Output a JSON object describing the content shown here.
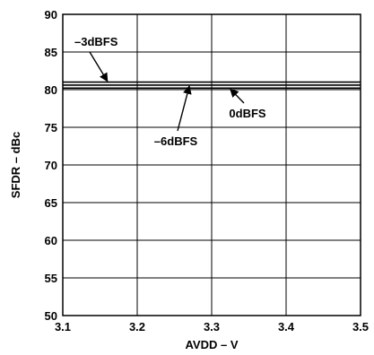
{
  "chart_data": {
    "type": "line",
    "xlabel": "AVDD – V",
    "ylabel": "SFDR – dBc",
    "xlim": [
      3.1,
      3.5
    ],
    "ylim": [
      50,
      90
    ],
    "x_ticks": [
      "3.1",
      "3.2",
      "3.3",
      "3.4",
      "3.5"
    ],
    "y_ticks": [
      "50",
      "55",
      "60",
      "65",
      "70",
      "75",
      "80",
      "85",
      "90"
    ],
    "grid": true,
    "series": [
      {
        "name": "–3dBFS",
        "x": [
          3.1,
          3.5
        ],
        "y": [
          81.0,
          81.0
        ]
      },
      {
        "name": "–6dBFS",
        "x": [
          3.1,
          3.5
        ],
        "y": [
          80.6,
          80.6
        ]
      },
      {
        "name": "0dBFS",
        "x": [
          3.1,
          3.5
        ],
        "y": [
          80.2,
          80.2
        ]
      }
    ],
    "annotations": [
      {
        "text": "–3dBFS",
        "series": 0,
        "point_x": 3.16
      },
      {
        "text": "–6dBFS",
        "series": 1,
        "point_x": 3.27
      },
      {
        "text": "0dBFS",
        "series": 2,
        "point_x": 3.325
      }
    ]
  }
}
